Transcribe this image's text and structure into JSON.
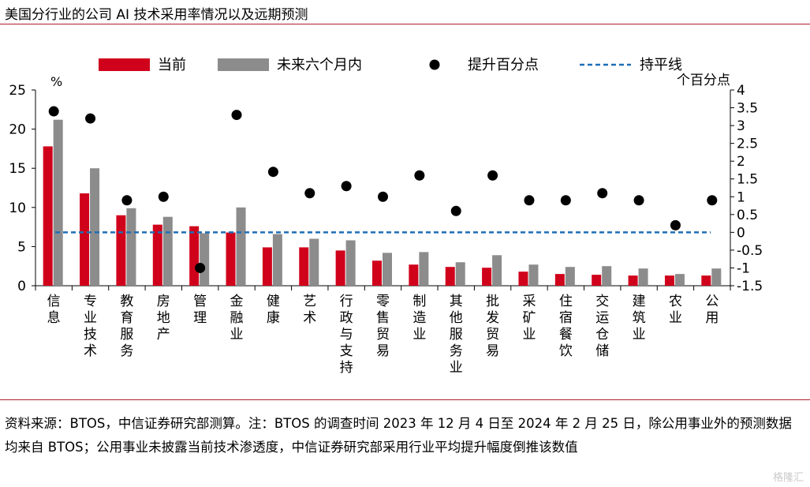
{
  "header": {
    "title": "美国分行业的公司 AI 技术采用率情况以及远期预测"
  },
  "footer": {
    "note": "资料来源：BTOS，中信证券研究部测算。注：BTOS 的调查时间 2023 年 12 月 4 日至 2024 年 2 月 25 日，除公用事业外的预测数据均来自 BTOS；公用事业未披露当前技术渗透度，中信证券研究部采用行业平均提升幅度倒推该数值",
    "watermark": "格隆汇"
  },
  "chart_data": {
    "type": "bar",
    "categories": [
      "信息",
      "专业技术",
      "教育服务",
      "房地产",
      "管理",
      "金融业",
      "健康",
      "艺术",
      "行政与支持",
      "零售贸易",
      "制造业",
      "其他服务业",
      "批发贸易",
      "采矿业",
      "住宿餐饮",
      "交运仓储",
      "建筑业",
      "农业",
      "公用"
    ],
    "series": [
      {
        "name": "当前",
        "type": "bar",
        "axis": "left",
        "color": "#d0021b",
        "values": [
          17.8,
          11.8,
          9.0,
          7.8,
          7.6,
          6.8,
          4.9,
          4.9,
          4.5,
          3.2,
          2.7,
          2.4,
          2.3,
          1.8,
          1.5,
          1.4,
          1.3,
          1.3,
          1.3
        ]
      },
      {
        "name": "未来六个月内",
        "type": "bar",
        "axis": "left",
        "color": "#8c8c8c",
        "values": [
          21.2,
          15.0,
          9.9,
          8.8,
          6.7,
          10.0,
          6.6,
          6.0,
          5.8,
          4.2,
          4.3,
          3.0,
          3.9,
          2.7,
          2.4,
          2.5,
          2.2,
          1.5,
          2.2
        ]
      },
      {
        "name": "提升百分点",
        "type": "scatter",
        "axis": "right",
        "color": "#000000",
        "values": [
          3.4,
          3.2,
          0.9,
          1.0,
          -1.0,
          3.3,
          1.7,
          1.1,
          1.3,
          1.0,
          1.6,
          0.6,
          1.6,
          0.9,
          0.9,
          1.1,
          0.9,
          0.2,
          0.9
        ]
      },
      {
        "name": "持平线",
        "type": "line",
        "axis": "right",
        "color": "#1f6fb5",
        "value": 0
      }
    ],
    "ylim": [
      0,
      25
    ],
    "yticks": [
      "0",
      "5",
      "10",
      "15",
      "20",
      "25"
    ],
    "ylabel": "%",
    "y2lim": [
      -1.5,
      4
    ],
    "y2ticks": [
      "-1.5",
      "-1",
      "-0.5",
      "0",
      "0.5",
      "1",
      "1.5",
      "2",
      "2.5",
      "3",
      "3.5",
      "4"
    ],
    "y2label": "个百分点",
    "grid": false,
    "legend": "top"
  },
  "colors": {
    "accent_rule": "#b0202a"
  }
}
